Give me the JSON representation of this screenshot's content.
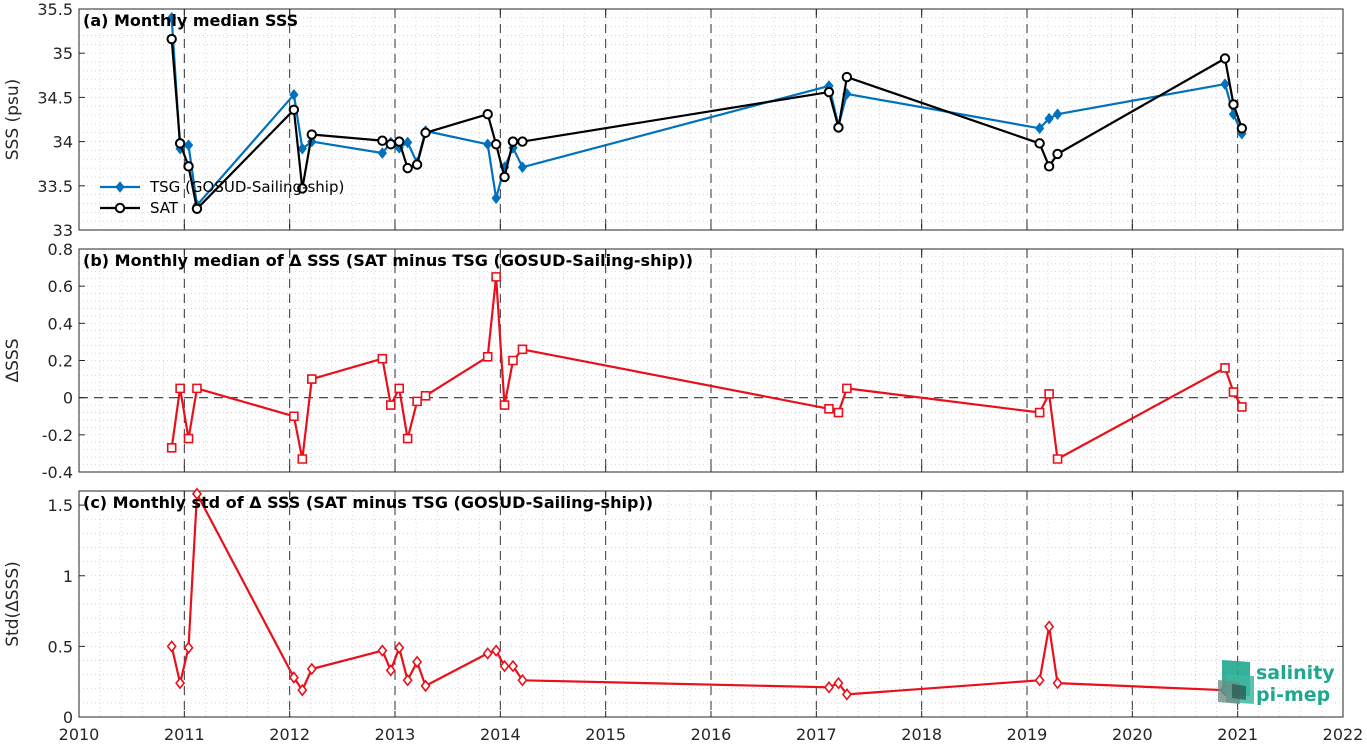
{
  "colors": {
    "tsg": "#0072BD",
    "sat": "#000000",
    "diff": "#E8101A",
    "logo": "#1fa88f"
  },
  "logo": {
    "line1": "salinity",
    "line2": "pi-mep"
  },
  "chart_data": [
    {
      "id": "a",
      "type": "line",
      "title": "(a) Monthly median SSS",
      "ylabel": "SSS (psu)",
      "xlim": [
        2010,
        2022
      ],
      "ylim": [
        33,
        35.5
      ],
      "yticks": [
        33,
        33.5,
        34,
        34.5,
        35,
        35.5
      ],
      "ytick_labels": [
        "33",
        "33.5",
        "34",
        "34.5",
        "35",
        "35.5"
      ],
      "grid": true,
      "legend": "middle-left",
      "series": [
        {
          "name": "TSG (GOSUD-Sailing-ship)",
          "marker": "diamond",
          "color": "#0072BD",
          "x": [
            2010.88,
            2010.96,
            2011.04,
            2011.12,
            2012.04,
            2012.12,
            2012.21,
            2012.88,
            2012.96,
            2013.04,
            2013.12,
            2013.21,
            2013.29,
            2013.88,
            2013.96,
            2014.04,
            2014.12,
            2014.21,
            2017.12,
            2017.21,
            2017.29,
            2019.12,
            2019.21,
            2019.29,
            2020.88,
            2020.96,
            2021.04
          ],
          "y": [
            35.4,
            33.92,
            33.96,
            33.28,
            34.53,
            33.92,
            34.0,
            33.87,
            33.99,
            33.93,
            33.99,
            33.76,
            34.12,
            33.97,
            33.36,
            33.71,
            33.93,
            33.71,
            34.63,
            34.18,
            34.54,
            34.15,
            34.26,
            34.31,
            34.65,
            34.31,
            34.09
          ]
        },
        {
          "name": "SAT",
          "marker": "circle",
          "color": "#000000",
          "x": [
            2010.88,
            2010.96,
            2011.04,
            2011.12,
            2012.04,
            2012.12,
            2012.21,
            2012.88,
            2012.96,
            2013.04,
            2013.12,
            2013.21,
            2013.29,
            2013.88,
            2013.96,
            2014.04,
            2014.12,
            2014.21,
            2017.12,
            2017.21,
            2017.29,
            2019.12,
            2019.21,
            2019.29,
            2020.88,
            2020.96,
            2021.04
          ],
          "y": [
            35.16,
            33.98,
            33.72,
            33.24,
            34.36,
            33.47,
            34.08,
            34.01,
            33.97,
            34.0,
            33.7,
            33.74,
            34.1,
            34.31,
            33.97,
            33.6,
            34.0,
            34.0,
            34.56,
            34.16,
            34.73,
            33.98,
            33.72,
            33.86,
            34.94,
            34.42,
            34.15
          ]
        }
      ]
    },
    {
      "id": "b",
      "type": "line",
      "title": "(b) Monthly median of Δ SSS (SAT minus TSG (GOSUD-Sailing-ship))",
      "ylabel": "ΔSSS",
      "xlim": [
        2010,
        2022
      ],
      "ylim": [
        -0.4,
        0.8
      ],
      "yticks": [
        -0.4,
        -0.2,
        0,
        0.2,
        0.4,
        0.6,
        0.8
      ],
      "ytick_labels": [
        "-0.4",
        "-0.2",
        "0",
        "0.2",
        "0.4",
        "0.6",
        "0.8"
      ],
      "zero_line": true,
      "grid": true,
      "series": [
        {
          "name": "",
          "marker": "square",
          "color": "#E8101A",
          "x": [
            2010.88,
            2010.96,
            2011.04,
            2011.12,
            2012.04,
            2012.12,
            2012.21,
            2012.88,
            2012.96,
            2013.04,
            2013.12,
            2013.21,
            2013.29,
            2013.88,
            2013.96,
            2014.04,
            2014.12,
            2014.21,
            2017.12,
            2017.21,
            2017.29,
            2019.12,
            2019.21,
            2019.29,
            2020.88,
            2020.96,
            2021.04
          ],
          "y": [
            -0.27,
            0.05,
            -0.22,
            0.05,
            -0.1,
            -0.33,
            0.1,
            0.21,
            -0.04,
            0.05,
            -0.22,
            -0.02,
            0.01,
            0.22,
            0.65,
            -0.04,
            0.2,
            0.26,
            -0.06,
            -0.08,
            0.05,
            -0.08,
            0.02,
            -0.33,
            0.16,
            0.03,
            -0.05
          ]
        }
      ]
    },
    {
      "id": "c",
      "type": "line",
      "title": "(c) Monthly std of Δ SSS (SAT minus TSG (GOSUD-Sailing-ship))",
      "ylabel": "Std(ΔSSS)",
      "xlabel": "",
      "xlim": [
        2010,
        2022
      ],
      "ylim": [
        0,
        1.6
      ],
      "yticks": [
        0,
        0.5,
        1,
        1.5
      ],
      "ytick_labels": [
        "0",
        "0.5",
        "1",
        "1.5"
      ],
      "xticks": [
        2010,
        2011,
        2012,
        2013,
        2014,
        2015,
        2016,
        2017,
        2018,
        2019,
        2020,
        2021,
        2022
      ],
      "xtick_labels": [
        "2010",
        "2011",
        "2012",
        "2013",
        "2014",
        "2015",
        "2016",
        "2017",
        "2018",
        "2019",
        "2020",
        "2021",
        "2022"
      ],
      "grid": true,
      "series": [
        {
          "name": "",
          "marker": "diamond",
          "color": "#E8101A",
          "x": [
            2010.88,
            2010.96,
            2011.04,
            2011.12,
            2012.04,
            2012.12,
            2012.21,
            2012.88,
            2012.96,
            2013.04,
            2013.12,
            2013.21,
            2013.29,
            2013.88,
            2013.96,
            2014.04,
            2014.12,
            2014.21,
            2017.12,
            2017.21,
            2017.29,
            2019.12,
            2019.21,
            2019.29,
            2020.88,
            2020.96,
            2021.04
          ],
          "y": [
            0.5,
            0.24,
            0.49,
            1.58,
            0.28,
            0.19,
            0.34,
            0.47,
            0.33,
            0.49,
            0.26,
            0.39,
            0.22,
            0.45,
            0.47,
            0.36,
            0.36,
            0.26,
            0.21,
            0.24,
            0.16,
            0.26,
            0.64,
            0.24,
            0.19,
            0.22,
            0.19
          ]
        }
      ]
    }
  ]
}
